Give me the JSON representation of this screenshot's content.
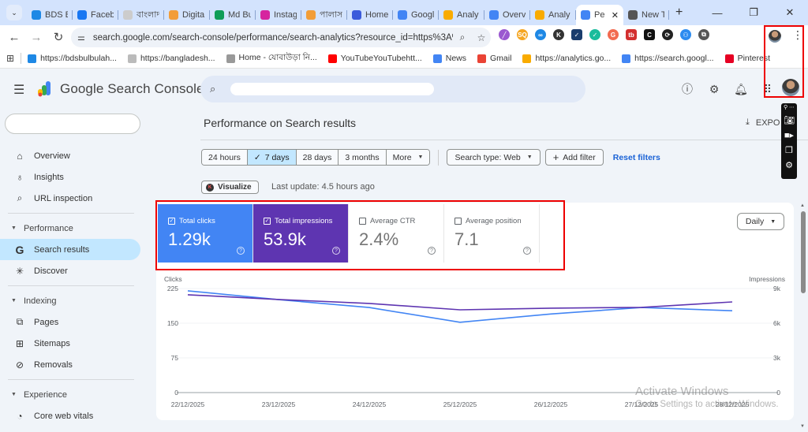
{
  "browser": {
    "tabs": [
      {
        "label": "BDS B",
        "favicon_color": "#1e88e5"
      },
      {
        "label": "Faceb",
        "favicon_color": "#1877f2"
      },
      {
        "label": "বাংলাদ",
        "favicon_color": "#cccccc"
      },
      {
        "label": "Digita",
        "favicon_color": "#f29d38"
      },
      {
        "label": "Md Bu",
        "favicon_color": "#0f9d58"
      },
      {
        "label": "Instag",
        "favicon_color": "#d6249f"
      },
      {
        "label": "পালাস",
        "favicon_color": "#f29d38"
      },
      {
        "label": "Home",
        "favicon_color": "#3b5bdb"
      },
      {
        "label": "Googl",
        "favicon_color": "#4285f4"
      },
      {
        "label": "Analy",
        "favicon_color": "#f9ab00"
      },
      {
        "label": "Overv",
        "favicon_color": "#4285f4"
      },
      {
        "label": "Analy",
        "favicon_color": "#f9ab00"
      },
      {
        "label": "Pe",
        "favicon_color": "#4285f4",
        "active": true
      },
      {
        "label": "New T",
        "favicon_color": "#555555"
      }
    ],
    "new_tab": "+",
    "window_controls": [
      "—",
      "❐",
      "✕"
    ],
    "url": "search.google.com/search-console/performance/search-analytics?resource_id=https%3A%2F%...",
    "extensions": [
      {
        "glyph": "╱",
        "color": "#9b59d0"
      },
      {
        "glyph": "SQ",
        "color": "#f5a623"
      },
      {
        "glyph": "∞",
        "color": "#1e88e5"
      },
      {
        "glyph": "K",
        "color": "#333333"
      },
      {
        "glyph": "✓",
        "color": "#1a3d6d"
      },
      {
        "glyph": "✓",
        "color": "#1abc9c"
      },
      {
        "glyph": "G",
        "color": "#f26b50"
      },
      {
        "glyph": "tb",
        "color": "#d32f2f"
      },
      {
        "glyph": "C",
        "color": "#111111"
      },
      {
        "glyph": "⟳",
        "color": "#222222"
      },
      {
        "glyph": "⚇",
        "color": "#2d8cf0"
      },
      {
        "glyph": "⧉",
        "color": "#555555"
      }
    ],
    "bookmarks": [
      {
        "label": "https://bdsbulbulah...",
        "color": "#1e88e5"
      },
      {
        "label": "https://bangladesh...",
        "color": "#bbbbbb"
      },
      {
        "label": "Home - যোবাউড়া নি...",
        "color": "#999999"
      },
      {
        "label": "YouTubeYouTubehtt...",
        "color": "#ff0000"
      },
      {
        "label": "News",
        "color": "#4285f4"
      },
      {
        "label": "Gmail",
        "color": "#ea4335"
      },
      {
        "label": "https://analytics.go...",
        "color": "#f9ab00"
      },
      {
        "label": "https://search.googl...",
        "color": "#4285f4"
      },
      {
        "label": "Pinterest",
        "color": "#e60023"
      }
    ]
  },
  "header": {
    "product_name": "Google Search Console",
    "search_placeholder": ""
  },
  "sidebar": {
    "property": "",
    "items": [
      {
        "label": "Overview",
        "icon": "⌂",
        "type": "item"
      },
      {
        "label": "Insights",
        "icon": "♁",
        "type": "item"
      },
      {
        "label": "URL inspection",
        "icon": "⌕",
        "type": "item"
      },
      {
        "label": "Performance",
        "type": "section"
      },
      {
        "label": "Search results",
        "icon": "G",
        "type": "item",
        "active": true
      },
      {
        "label": "Discover",
        "icon": "✳",
        "type": "item"
      },
      {
        "label": "Indexing",
        "type": "section"
      },
      {
        "label": "Pages",
        "icon": "⧉",
        "type": "item"
      },
      {
        "label": "Sitemaps",
        "icon": "⊞",
        "type": "item"
      },
      {
        "label": "Removals",
        "icon": "⊘",
        "type": "item"
      },
      {
        "label": "Experience",
        "type": "section"
      },
      {
        "label": "Core web vitals",
        "icon": "◔",
        "type": "item"
      }
    ]
  },
  "main": {
    "page_title": "Performance on Search results",
    "export_label": "EXPO",
    "date_ranges": [
      {
        "label": "24 hours"
      },
      {
        "label": "7 days",
        "selected": true
      },
      {
        "label": "28 days"
      },
      {
        "label": "3 months"
      },
      {
        "label": "More"
      }
    ],
    "search_type": "Search type: Web",
    "add_filter": "Add filter",
    "reset_filters": "Reset filters",
    "visualize": "Visualize",
    "last_update": "Last update: 4.5 hours ago",
    "granularity": "Daily",
    "metrics": [
      {
        "label": "Total clicks",
        "value": "1.29k",
        "checked": true,
        "color": "#4285f4"
      },
      {
        "label": "Total impressions",
        "value": "53.9k",
        "checked": true,
        "color": "#5e35b1"
      },
      {
        "label": "Average CTR",
        "value": "2.4%",
        "checked": false
      },
      {
        "label": "Average position",
        "value": "7.1",
        "checked": false
      }
    ]
  },
  "chart_data": {
    "type": "line",
    "title": "Performance on Search results",
    "x": [
      "22/12/2025",
      "23/12/2025",
      "24/12/2025",
      "25/12/2025",
      "26/12/2025",
      "27/12/2025",
      "28/12/2025"
    ],
    "series": [
      {
        "name": "Clicks",
        "axis": "left",
        "color": "#4285f4",
        "values": [
          220,
          201,
          184,
          152,
          170,
          184,
          177
        ]
      },
      {
        "name": "Impressions",
        "axis": "right",
        "color": "#5e35b1",
        "values": [
          8460,
          8050,
          7710,
          7160,
          7300,
          7370,
          7840
        ]
      }
    ],
    "ylabel": "Clicks",
    "ylabel_right": "Impressions",
    "ylim": [
      0,
      225
    ],
    "ylim_right": [
      0,
      9000
    ],
    "yticks": [
      "0",
      "75",
      "150",
      "225"
    ],
    "yticks_right": [
      "0",
      "3k",
      "6k",
      "9k"
    ],
    "grid": true,
    "legend": "metric cards above chart"
  },
  "overlay": {
    "watermark_title": "Activate Windows",
    "watermark_sub": "Go to Settings to activate Windows."
  }
}
